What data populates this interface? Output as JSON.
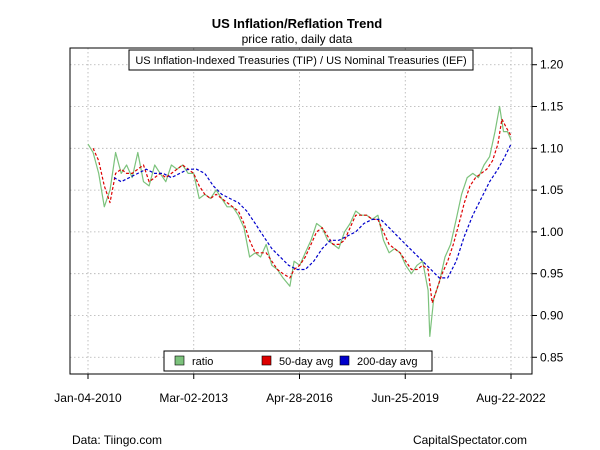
{
  "colors": {
    "ratio": "#7cc27c",
    "ma50": "#dd0000",
    "ma200": "#0000cc",
    "grid": "#b0b0b0",
    "frame": "#000000"
  },
  "caption_left": "Data: Tiingo.com",
  "caption_right": "CapitalSpectator.com",
  "chart_data": {
    "type": "line",
    "title": "US Inflation/Reflation Trend",
    "subtitle": "price ratio, daily data",
    "annotation": "US Inflation-Indexed Treasuries (TIP) / US Nominal Treasuries (IEF)",
    "xlabel": "",
    "ylabel": "",
    "ylim": [
      0.83,
      1.22
    ],
    "xlim": [
      "2010-01-04",
      "2022-08-22"
    ],
    "x_ticks": [
      "Jan-04-2010",
      "Mar-02-2013",
      "Apr-28-2016",
      "Jun-25-2019",
      "Aug-22-2022"
    ],
    "y_ticks": [
      0.85,
      0.9,
      0.95,
      1.0,
      1.05,
      1.1,
      1.15,
      1.2
    ],
    "y_tick_labels": [
      "0.85",
      "0.90",
      "0.95",
      "1.00",
      "1.05",
      "1.10",
      "1.15",
      "1.20"
    ],
    "axis_side": "right",
    "grid": true,
    "legend_position": "bottom-center",
    "legend": [
      "ratio",
      "50-day avg",
      "200-day avg"
    ],
    "series": [
      {
        "name": "ratio",
        "style": "solid",
        "x": [
          "2010-01-04",
          "2010-03-01",
          "2010-05-01",
          "2010-07-01",
          "2010-09-01",
          "2010-11-01",
          "2011-01-01",
          "2011-03-01",
          "2011-05-01",
          "2011-07-01",
          "2011-09-01",
          "2011-11-01",
          "2012-01-01",
          "2012-03-01",
          "2012-05-01",
          "2012-07-01",
          "2012-09-01",
          "2012-11-01",
          "2013-01-01",
          "2013-03-01",
          "2013-05-01",
          "2013-07-01",
          "2013-09-01",
          "2013-11-01",
          "2014-01-01",
          "2014-03-01",
          "2014-05-01",
          "2014-07-01",
          "2014-09-01",
          "2014-11-01",
          "2015-01-01",
          "2015-03-01",
          "2015-05-01",
          "2015-07-01",
          "2015-09-01",
          "2015-11-01",
          "2016-01-15",
          "2016-03-01",
          "2016-05-01",
          "2016-07-01",
          "2016-09-01",
          "2016-11-01",
          "2017-01-01",
          "2017-03-01",
          "2017-05-01",
          "2017-07-01",
          "2017-09-01",
          "2017-11-01",
          "2018-01-01",
          "2018-03-01",
          "2018-05-01",
          "2018-07-01",
          "2018-09-01",
          "2018-11-01",
          "2019-01-01",
          "2019-03-01",
          "2019-05-01",
          "2019-07-01",
          "2019-09-01",
          "2019-11-01",
          "2020-01-01",
          "2020-03-01",
          "2020-03-20",
          "2020-05-01",
          "2020-07-01",
          "2020-09-01",
          "2020-11-01",
          "2021-01-01",
          "2021-03-01",
          "2021-05-01",
          "2021-07-01",
          "2021-09-01",
          "2021-11-01",
          "2022-01-01",
          "2022-03-01",
          "2022-04-20",
          "2022-06-01",
          "2022-07-15",
          "2022-08-22"
        ],
        "y": [
          1.105,
          1.095,
          1.07,
          1.03,
          1.05,
          1.095,
          1.07,
          1.08,
          1.065,
          1.095,
          1.06,
          1.055,
          1.08,
          1.07,
          1.06,
          1.08,
          1.075,
          1.08,
          1.07,
          1.07,
          1.04,
          1.045,
          1.04,
          1.05,
          1.04,
          1.03,
          1.03,
          1.02,
          1.005,
          0.97,
          0.975,
          0.97,
          0.985,
          0.96,
          0.955,
          0.945,
          0.935,
          0.965,
          0.96,
          0.975,
          0.99,
          1.01,
          1.005,
          0.99,
          0.985,
          0.98,
          1.0,
          1.01,
          1.025,
          1.02,
          1.02,
          1.015,
          1.02,
          0.99,
          0.975,
          0.98,
          0.975,
          0.96,
          0.95,
          0.96,
          0.965,
          0.93,
          0.875,
          0.92,
          0.94,
          0.97,
          0.985,
          1.015,
          1.045,
          1.065,
          1.07,
          1.065,
          1.08,
          1.09,
          1.12,
          1.15,
          1.12,
          1.12,
          1.11
        ]
      },
      {
        "name": "50-day avg",
        "style": "dashed",
        "x": [
          "2010-03-01",
          "2010-05-01",
          "2010-07-01",
          "2010-09-01",
          "2010-11-01",
          "2011-01-01",
          "2011-03-01",
          "2011-05-01",
          "2011-07-01",
          "2011-09-01",
          "2011-11-01",
          "2012-01-01",
          "2012-03-01",
          "2012-05-01",
          "2012-07-01",
          "2012-09-01",
          "2012-11-01",
          "2013-01-01",
          "2013-03-01",
          "2013-05-01",
          "2013-07-01",
          "2013-09-01",
          "2013-11-01",
          "2014-01-01",
          "2014-03-01",
          "2014-05-01",
          "2014-07-01",
          "2014-09-01",
          "2014-11-01",
          "2015-01-01",
          "2015-03-01",
          "2015-05-01",
          "2015-07-01",
          "2015-09-01",
          "2015-11-01",
          "2016-01-15",
          "2016-03-01",
          "2016-05-01",
          "2016-07-01",
          "2016-09-01",
          "2016-11-01",
          "2017-01-01",
          "2017-03-01",
          "2017-05-01",
          "2017-07-01",
          "2017-09-01",
          "2017-11-01",
          "2018-01-01",
          "2018-03-01",
          "2018-05-01",
          "2018-07-01",
          "2018-09-01",
          "2018-11-01",
          "2019-01-01",
          "2019-03-01",
          "2019-05-01",
          "2019-07-01",
          "2019-09-01",
          "2019-11-01",
          "2020-01-01",
          "2020-03-01",
          "2020-04-15",
          "2020-06-01",
          "2020-08-01",
          "2020-10-01",
          "2020-12-01",
          "2021-02-01",
          "2021-04-01",
          "2021-06-01",
          "2021-08-01",
          "2021-10-01",
          "2021-12-01",
          "2022-02-01",
          "2022-04-01",
          "2022-05-15",
          "2022-07-01",
          "2022-08-22"
        ],
        "y": [
          1.1,
          1.085,
          1.055,
          1.035,
          1.07,
          1.075,
          1.07,
          1.07,
          1.075,
          1.08,
          1.06,
          1.065,
          1.07,
          1.065,
          1.07,
          1.075,
          1.08,
          1.075,
          1.07,
          1.055,
          1.045,
          1.04,
          1.045,
          1.04,
          1.035,
          1.03,
          1.025,
          1.01,
          0.99,
          0.975,
          0.975,
          0.975,
          0.965,
          0.955,
          0.95,
          0.945,
          0.955,
          0.96,
          0.97,
          0.985,
          1.0,
          1.005,
          0.995,
          0.985,
          0.985,
          0.99,
          1.005,
          1.02,
          1.02,
          1.02,
          1.015,
          1.015,
          1.0,
          0.985,
          0.98,
          0.975,
          0.965,
          0.955,
          0.955,
          0.96,
          0.955,
          0.915,
          0.93,
          0.95,
          0.965,
          0.985,
          1.01,
          1.035,
          1.055,
          1.065,
          1.07,
          1.075,
          1.085,
          1.105,
          1.135,
          1.125,
          1.115
        ]
      },
      {
        "name": "200-day avg",
        "style": "dashed",
        "x": [
          "2010-10-15",
          "2011-01-01",
          "2011-04-01",
          "2011-07-01",
          "2011-10-01",
          "2012-01-01",
          "2012-04-01",
          "2012-07-01",
          "2012-10-01",
          "2013-01-01",
          "2013-04-01",
          "2013-07-01",
          "2013-10-01",
          "2014-01-01",
          "2014-04-01",
          "2014-07-01",
          "2014-10-01",
          "2015-01-01",
          "2015-04-01",
          "2015-07-01",
          "2015-10-01",
          "2016-01-01",
          "2016-04-01",
          "2016-07-01",
          "2016-10-01",
          "2017-01-01",
          "2017-04-01",
          "2017-07-01",
          "2017-10-01",
          "2018-01-01",
          "2018-04-01",
          "2018-07-01",
          "2018-10-01",
          "2019-01-01",
          "2019-04-01",
          "2019-07-01",
          "2019-10-01",
          "2020-01-01",
          "2020-04-01",
          "2020-07-01",
          "2020-10-01",
          "2021-01-01",
          "2021-04-01",
          "2021-07-01",
          "2021-10-01",
          "2022-01-01",
          "2022-04-01",
          "2022-06-15",
          "2022-08-22"
        ],
        "y": [
          1.065,
          1.06,
          1.065,
          1.07,
          1.075,
          1.07,
          1.07,
          1.065,
          1.07,
          1.075,
          1.075,
          1.07,
          1.055,
          1.045,
          1.04,
          1.035,
          1.025,
          1.01,
          0.995,
          0.98,
          0.97,
          0.96,
          0.955,
          0.955,
          0.965,
          0.98,
          0.99,
          0.99,
          0.995,
          1.0,
          1.01,
          1.015,
          1.015,
          1.005,
          0.995,
          0.985,
          0.975,
          0.965,
          0.955,
          0.945,
          0.945,
          0.965,
          0.995,
          1.02,
          1.04,
          1.06,
          1.075,
          1.09,
          1.105
        ]
      }
    ]
  }
}
